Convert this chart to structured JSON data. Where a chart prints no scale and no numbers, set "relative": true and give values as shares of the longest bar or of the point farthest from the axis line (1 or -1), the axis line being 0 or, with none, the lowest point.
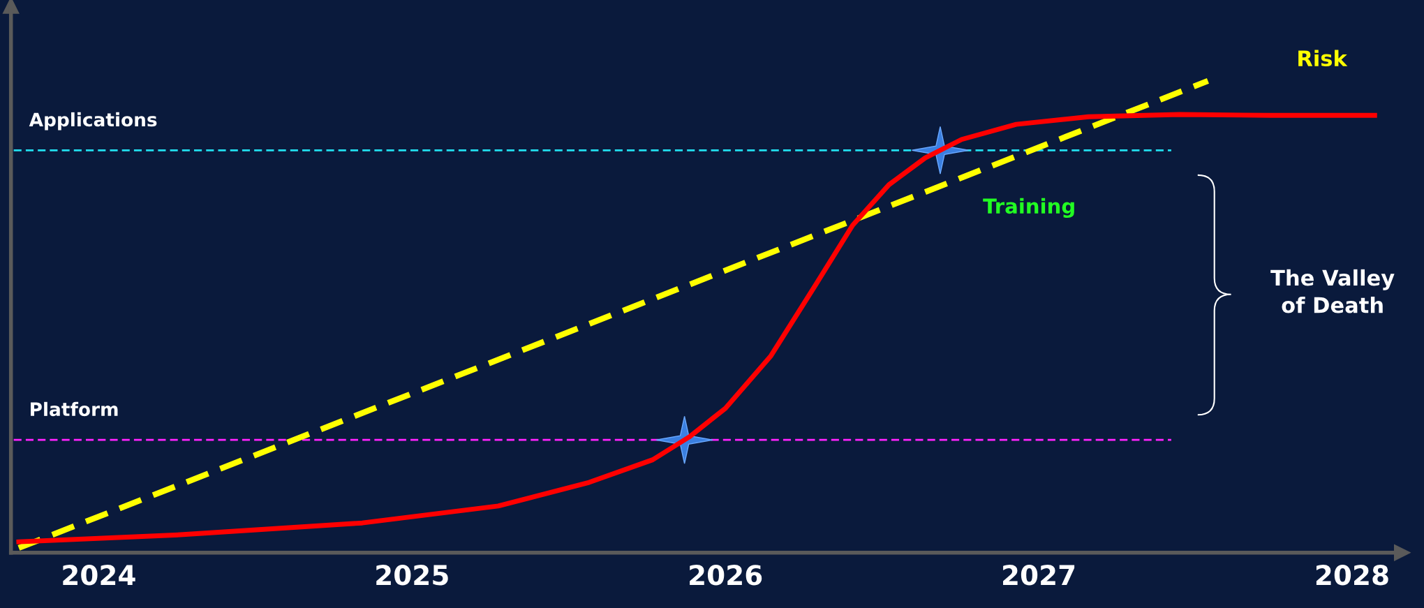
{
  "chart_data": {
    "type": "line",
    "relative": true,
    "xlim": [
      2023.72,
      2028.16
    ],
    "xticks": [
      2024,
      2025,
      2026,
      2027,
      2028
    ],
    "tick_labels": "x",
    "grid": false,
    "legend": false,
    "line_style": "solid",
    "marker": "none",
    "series": [
      {
        "name": "Risk",
        "color": "#ffff00",
        "line_style": "dashed",
        "x": [
          2023.745,
          2027.54
        ],
        "values": [
          0.01,
          1.0
        ]
      },
      {
        "color": "#ff0000",
        "x": [
          2023.745,
          2024.261,
          2024.841,
          2025.275,
          2025.565,
          2025.768,
          2025.884,
          2026.0,
          2026.145,
          2026.29,
          2026.406,
          2026.522,
          2026.638,
          2026.754,
          2026.928,
          2027.159,
          2027.449,
          2027.739,
          2028.072
        ],
        "values": [
          0.023,
          0.038,
          0.063,
          0.099,
          0.149,
          0.197,
          0.245,
          0.306,
          0.417,
          0.57,
          0.694,
          0.78,
          0.837,
          0.876,
          0.908,
          0.924,
          0.929,
          0.927,
          0.927
        ]
      }
    ],
    "ref_lines": [
      {
        "axis": "y",
        "value": 0.853,
        "label": "Applications",
        "color": "#22e0f0",
        "line_style": "dashed"
      },
      {
        "axis": "y",
        "value": 0.239,
        "label": "Platform",
        "color": "#ff22ff",
        "line_style": "dashed"
      }
    ],
    "annotations": [
      "Training",
      "The Valley\nof Death"
    ]
  }
}
